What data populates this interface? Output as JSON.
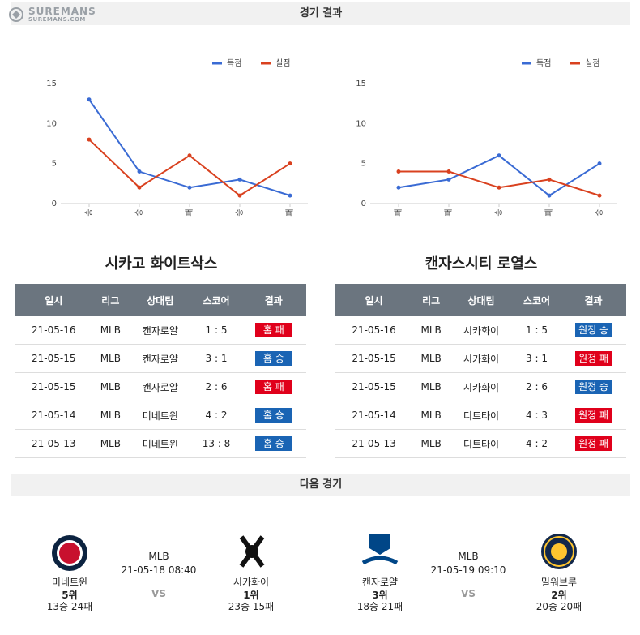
{
  "header": {
    "logo": "SUREMANS",
    "logo_sub": "SUREMANS.COM",
    "title": "경기 결과"
  },
  "chart_data": [
    {
      "type": "line",
      "categories": [
        "승",
        "승",
        "패",
        "승",
        "패"
      ],
      "series": [
        {
          "name": "득점",
          "color": "#3a6bd4",
          "values": [
            13,
            4,
            2,
            3,
            1
          ]
        },
        {
          "name": "실점",
          "color": "#d9411f",
          "values": [
            8,
            2,
            6,
            1,
            5
          ]
        }
      ],
      "ylim": [
        0,
        15
      ],
      "yticks": [
        0,
        5,
        10,
        15
      ],
      "legend": "top-right"
    },
    {
      "type": "line",
      "categories": [
        "패",
        "패",
        "승",
        "패",
        "승"
      ],
      "series": [
        {
          "name": "득점",
          "color": "#3a6bd4",
          "values": [
            2,
            3,
            6,
            1,
            5
          ]
        },
        {
          "name": "실점",
          "color": "#d9411f",
          "values": [
            4,
            4,
            2,
            3,
            1
          ]
        }
      ],
      "ylim": [
        0,
        15
      ],
      "yticks": [
        0,
        5,
        10,
        15
      ],
      "legend": "top-right"
    }
  ],
  "results": [
    {
      "team": "시카고 화이트삭스",
      "columns": [
        "일시",
        "리그",
        "상대팀",
        "스코어",
        "결과"
      ],
      "rows": [
        {
          "date": "21-05-16",
          "league": "MLB",
          "opponent": "캔자로얄",
          "score": "1 : 5",
          "result": "홈 패",
          "result_color": "#e0001b"
        },
        {
          "date": "21-05-15",
          "league": "MLB",
          "opponent": "캔자로얄",
          "score": "3 : 1",
          "result": "홈 승",
          "result_color": "#1a64b4"
        },
        {
          "date": "21-05-15",
          "league": "MLB",
          "opponent": "캔자로얄",
          "score": "2 : 6",
          "result": "홈 패",
          "result_color": "#e0001b"
        },
        {
          "date": "21-05-14",
          "league": "MLB",
          "opponent": "미네트윈",
          "score": "4 : 2",
          "result": "홈 승",
          "result_color": "#1a64b4"
        },
        {
          "date": "21-05-13",
          "league": "MLB",
          "opponent": "미네트윈",
          "score": "13 : 8",
          "result": "홈 승",
          "result_color": "#1a64b4"
        }
      ]
    },
    {
      "team": "캔자스시티 로열스",
      "columns": [
        "일시",
        "리그",
        "상대팀",
        "스코어",
        "결과"
      ],
      "rows": [
        {
          "date": "21-05-16",
          "league": "MLB",
          "opponent": "시카화이",
          "score": "1 : 5",
          "result": "원정 승",
          "result_color": "#1a64b4"
        },
        {
          "date": "21-05-15",
          "league": "MLB",
          "opponent": "시카화이",
          "score": "3 : 1",
          "result": "원정 패",
          "result_color": "#e0001b"
        },
        {
          "date": "21-05-15",
          "league": "MLB",
          "opponent": "시카화이",
          "score": "2 : 6",
          "result": "원정 승",
          "result_color": "#1a64b4"
        },
        {
          "date": "21-05-14",
          "league": "MLB",
          "opponent": "디트타이",
          "score": "4 : 3",
          "result": "원정 패",
          "result_color": "#e0001b"
        },
        {
          "date": "21-05-13",
          "league": "MLB",
          "opponent": "디트타이",
          "score": "4 : 2",
          "result": "원정 패",
          "result_color": "#e0001b"
        }
      ]
    }
  ],
  "next": {
    "title": "다음 경기",
    "games": [
      {
        "home": {
          "name": "미네트윈",
          "rank": "5위",
          "record": "13승 24패"
        },
        "league": "MLB",
        "time": "21-05-18 08:40",
        "vs": "VS",
        "away": {
          "name": "시카화이",
          "rank": "1위",
          "record": "23승 15패"
        }
      },
      {
        "home": {
          "name": "캔자로얄",
          "rank": "3위",
          "record": "18승 21패"
        },
        "league": "MLB",
        "time": "21-05-19 09:10",
        "vs": "VS",
        "away": {
          "name": "밀워브루",
          "rank": "2위",
          "record": "20승 20패"
        }
      }
    ]
  }
}
